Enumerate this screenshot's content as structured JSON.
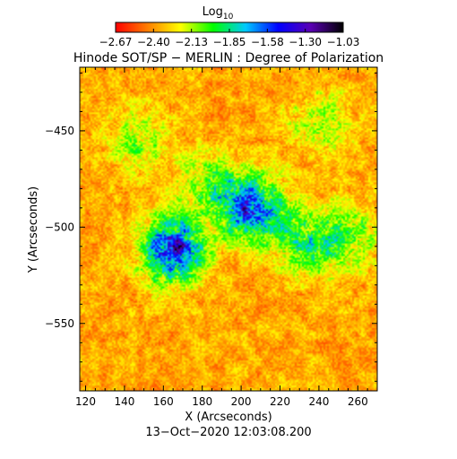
{
  "colorbar": {
    "label": "Log",
    "label_subscript": "10",
    "min": -2.67,
    "max": -1.03,
    "tick_labels": [
      "−2.67",
      "−2.40",
      "−2.13",
      "−1.85",
      "−1.58",
      "−1.30",
      "−1.03"
    ],
    "colors": [
      "#ff0000",
      "#ff8000",
      "#ffff00",
      "#00ff00",
      "#00c8ff",
      "#0000ff",
      "#5a00b4",
      "#000000"
    ]
  },
  "chart_data": {
    "type": "heatmap",
    "title": "Hinode SOT/SP − MERLIN : Degree of Polarization",
    "xlabel": "X (Arcseconds)",
    "ylabel": "Y (Arcseconds)",
    "xlim": [
      117,
      270
    ],
    "ylim": [
      -585,
      -417
    ],
    "x_ticks": [
      120,
      140,
      160,
      180,
      200,
      220,
      240,
      260
    ],
    "y_ticks": [
      -450,
      -500,
      -550
    ],
    "x_tick_labels": [
      "120",
      "140",
      "160",
      "180",
      "200",
      "220",
      "240",
      "260"
    ],
    "y_tick_labels": [
      "−450",
      "−500",
      "−550"
    ],
    "value_scale": "log10",
    "value_range": [
      -2.67,
      -1.03
    ],
    "active_regions": [
      {
        "x": 165,
        "y": -512,
        "strength": 1.0
      },
      {
        "x": 205,
        "y": -490,
        "strength": 0.85
      },
      {
        "x": 232,
        "y": -508,
        "strength": 0.45
      },
      {
        "x": 255,
        "y": -505,
        "strength": 0.4
      },
      {
        "x": 148,
        "y": -455,
        "strength": 0.3
      },
      {
        "x": 240,
        "y": -445,
        "strength": 0.3
      },
      {
        "x": 185,
        "y": -478,
        "strength": 0.35
      }
    ]
  },
  "footer_timestamp": "13−Oct−2020 12:03:08.200"
}
